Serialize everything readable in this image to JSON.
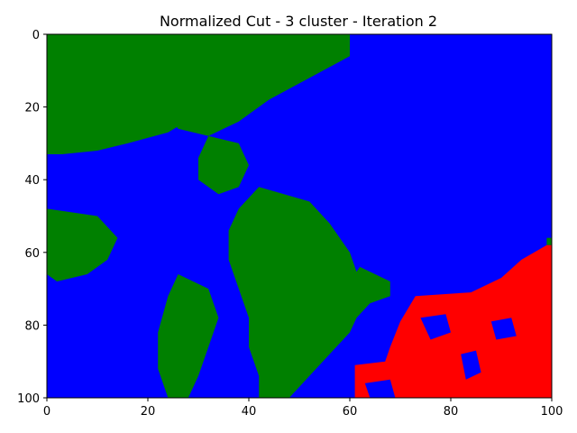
{
  "chart_data": {
    "type": "heatmap",
    "title": "Normalized Cut - 3 cluster - Iteration 2",
    "xlabel": "",
    "ylabel": "",
    "xlim": [
      0,
      100
    ],
    "ylim": [
      100,
      0
    ],
    "y_inverted": true,
    "grid": false,
    "legend": "none",
    "x_ticks": [
      0,
      20,
      40,
      60,
      80,
      100
    ],
    "y_ticks": [
      0,
      20,
      40,
      60,
      80,
      100
    ],
    "x_tick_labels": [
      "0",
      "20",
      "40",
      "60",
      "80",
      "100"
    ],
    "y_tick_labels": [
      "0",
      "20",
      "40",
      "60",
      "80",
      "100"
    ],
    "categories": [
      "cluster-red",
      "cluster-green",
      "cluster-blue"
    ],
    "colors": {
      "cluster-red": "#ff0000",
      "cluster-green": "#008000",
      "cluster-blue": "#0000ff"
    },
    "regions": [
      {
        "cluster": "cluster-blue",
        "polygon": [
          [
            0,
            0
          ],
          [
            100,
            0
          ],
          [
            100,
            100
          ],
          [
            0,
            100
          ]
        ]
      },
      {
        "cluster": "cluster-green",
        "polygon": [
          [
            0,
            0
          ],
          [
            50,
            0
          ],
          [
            48,
            6
          ],
          [
            40,
            10
          ],
          [
            35,
            15
          ],
          [
            30,
            22
          ],
          [
            24,
            27
          ],
          [
            16,
            30
          ],
          [
            10,
            32
          ],
          [
            3,
            33
          ],
          [
            0,
            33
          ]
        ]
      },
      {
        "cluster": "cluster-green",
        "polygon": [
          [
            20,
            0
          ],
          [
            60,
            0
          ],
          [
            60,
            6
          ],
          [
            52,
            12
          ],
          [
            44,
            18
          ],
          [
            38,
            24
          ],
          [
            32,
            28
          ],
          [
            26,
            26
          ],
          [
            22,
            18
          ],
          [
            20,
            8
          ]
        ]
      },
      {
        "cluster": "cluster-green",
        "polygon": [
          [
            32,
            28
          ],
          [
            38,
            30
          ],
          [
            40,
            36
          ],
          [
            38,
            42
          ],
          [
            34,
            44
          ],
          [
            30,
            40
          ],
          [
            30,
            34
          ]
        ]
      },
      {
        "cluster": "cluster-green",
        "polygon": [
          [
            42,
            42
          ],
          [
            52,
            46
          ],
          [
            56,
            52
          ],
          [
            60,
            60
          ],
          [
            62,
            68
          ],
          [
            62,
            76
          ],
          [
            60,
            82
          ],
          [
            56,
            88
          ],
          [
            52,
            94
          ],
          [
            48,
            100
          ],
          [
            42,
            100
          ],
          [
            42,
            94
          ],
          [
            40,
            86
          ],
          [
            40,
            78
          ],
          [
            38,
            70
          ],
          [
            36,
            62
          ],
          [
            36,
            54
          ],
          [
            38,
            48
          ]
        ]
      },
      {
        "cluster": "cluster-green",
        "polygon": [
          [
            62,
            64
          ],
          [
            68,
            68
          ],
          [
            68,
            72
          ],
          [
            64,
            74
          ],
          [
            60,
            80
          ],
          [
            56,
            84
          ],
          [
            54,
            80
          ],
          [
            58,
            74
          ],
          [
            60,
            68
          ]
        ]
      },
      {
        "cluster": "cluster-green",
        "polygon": [
          [
            0,
            48
          ],
          [
            10,
            50
          ],
          [
            14,
            56
          ],
          [
            12,
            62
          ],
          [
            8,
            66
          ],
          [
            2,
            68
          ],
          [
            0,
            66
          ]
        ]
      },
      {
        "cluster": "cluster-green",
        "polygon": [
          [
            26,
            66
          ],
          [
            32,
            70
          ],
          [
            34,
            78
          ],
          [
            32,
            86
          ],
          [
            30,
            94
          ],
          [
            28,
            100
          ],
          [
            24,
            100
          ],
          [
            22,
            92
          ],
          [
            22,
            82
          ],
          [
            24,
            72
          ]
        ]
      },
      {
        "cluster": "cluster-green",
        "polygon": [
          [
            99,
            56
          ],
          [
            100,
            56
          ],
          [
            100,
            58
          ],
          [
            99,
            58
          ]
        ]
      },
      {
        "cluster": "cluster-red",
        "polygon": [
          [
            61,
            100
          ],
          [
            61,
            91
          ],
          [
            67,
            90
          ],
          [
            68,
            86
          ],
          [
            70,
            79
          ],
          [
            73,
            72
          ],
          [
            84,
            71
          ],
          [
            90,
            67
          ],
          [
            94,
            62
          ],
          [
            99,
            58
          ],
          [
            100,
            58
          ],
          [
            100,
            100
          ]
        ]
      },
      {
        "cluster": "cluster-blue",
        "polygon": [
          [
            74,
            78
          ],
          [
            79,
            77
          ],
          [
            80,
            82
          ],
          [
            76,
            84
          ]
        ]
      },
      {
        "cluster": "cluster-blue",
        "polygon": [
          [
            82,
            88
          ],
          [
            85,
            87
          ],
          [
            86,
            93
          ],
          [
            83,
            95
          ]
        ]
      },
      {
        "cluster": "cluster-blue",
        "polygon": [
          [
            63,
            96
          ],
          [
            68,
            95
          ],
          [
            69,
            100
          ],
          [
            64,
            100
          ]
        ]
      },
      {
        "cluster": "cluster-blue",
        "polygon": [
          [
            88,
            79
          ],
          [
            92,
            78
          ],
          [
            93,
            83
          ],
          [
            89,
            84
          ]
        ]
      }
    ]
  }
}
